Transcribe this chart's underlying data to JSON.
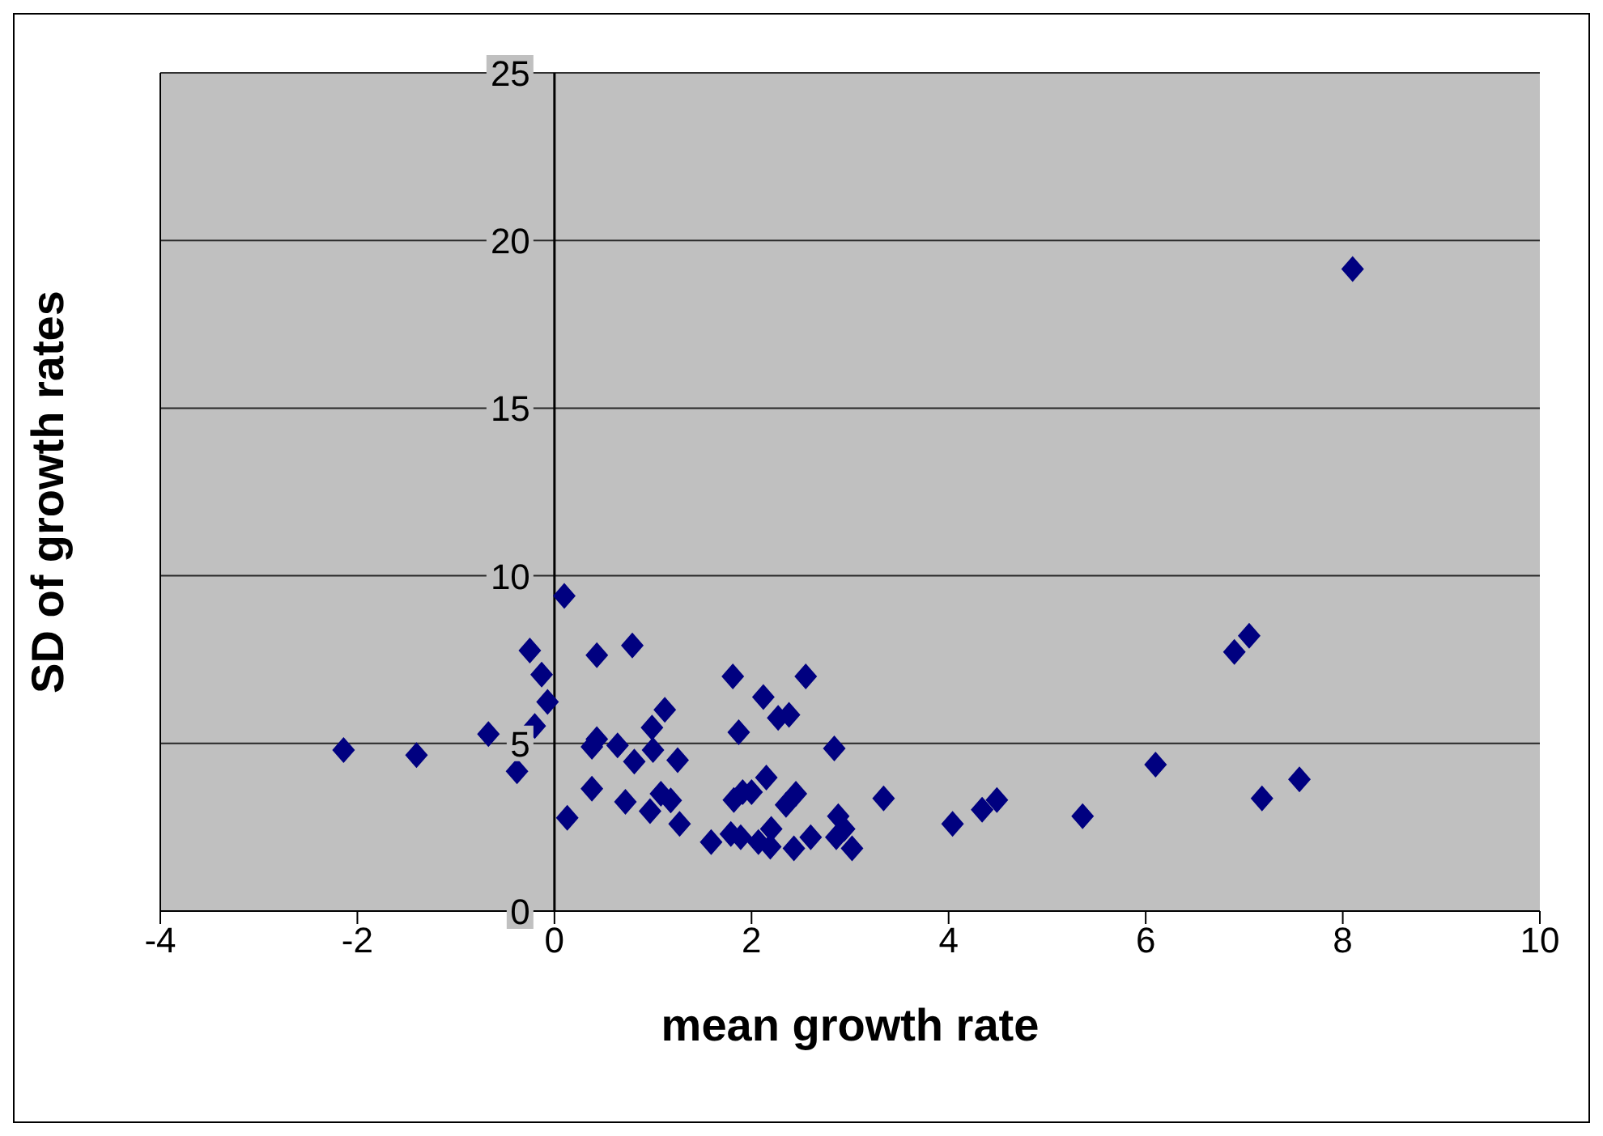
{
  "chart_data": {
    "type": "scatter",
    "xlabel": "mean growth rate",
    "ylabel": "SD of growth rates",
    "xlim": [
      -4,
      10
    ],
    "xticks": [
      -4,
      -2,
      0,
      2,
      4,
      6,
      8,
      10
    ],
    "ylim": [
      0,
      25
    ],
    "yticks": [
      0,
      5,
      10,
      15,
      20,
      25
    ],
    "grid": "y",
    "marker": "diamond",
    "legend": false,
    "series": [
      {
        "color": "#000080",
        "x": [
          -2.14,
          -1.4,
          -0.67,
          -0.25,
          -0.13,
          -0.07,
          -0.2,
          -0.38,
          0.1,
          0.13,
          0.43,
          0.79,
          0.38,
          0.43,
          0.38,
          0.64,
          0.72,
          0.81,
          0.97,
          0.99,
          1.12,
          1.0,
          1.08,
          1.18,
          1.25,
          1.27,
          1.59,
          1.81,
          1.82,
          1.87,
          1.91,
          1.79,
          1.89,
          2.12,
          2.0,
          2.15,
          2.07,
          2.2,
          2.19,
          2.27,
          2.38,
          2.35,
          2.45,
          2.43,
          2.55,
          2.6,
          2.84,
          2.88,
          2.86,
          2.94,
          3.02,
          3.34,
          4.04,
          4.34,
          4.49,
          5.36,
          6.1,
          6.9,
          7.05,
          7.18,
          7.56,
          8.1
        ],
        "values": [
          4.8,
          4.65,
          5.28,
          7.77,
          7.05,
          6.24,
          5.52,
          4.17,
          9.4,
          2.78,
          7.63,
          7.92,
          4.9,
          5.13,
          3.65,
          4.94,
          3.26,
          4.46,
          2.98,
          5.47,
          6.0,
          4.8,
          3.5,
          3.3,
          4.5,
          2.6,
          2.06,
          7.0,
          3.31,
          5.33,
          3.55,
          2.3,
          2.2,
          6.38,
          3.55,
          3.98,
          2.06,
          2.45,
          1.92,
          5.76,
          5.85,
          3.17,
          3.5,
          1.87,
          7.0,
          2.2,
          4.85,
          2.83,
          2.2,
          2.45,
          1.87,
          3.36,
          2.6,
          3.02,
          3.31,
          2.83,
          4.37,
          7.73,
          8.21,
          3.36,
          3.93,
          19.15
        ]
      }
    ]
  }
}
